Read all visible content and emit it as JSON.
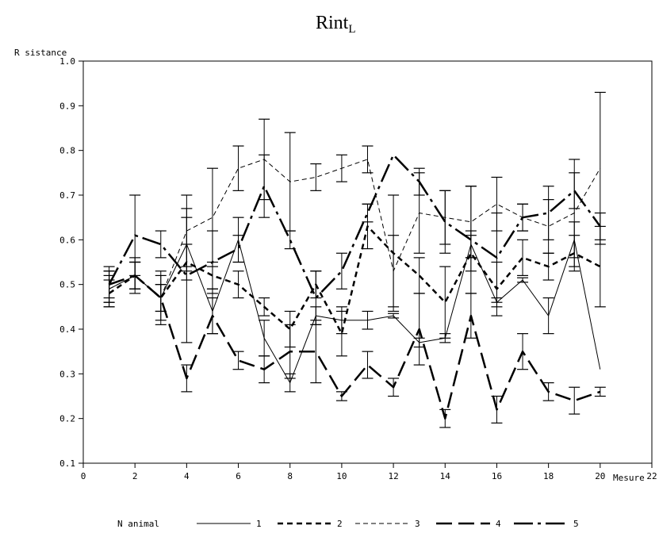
{
  "chart_data": {
    "type": "line",
    "title": "Rint",
    "title_subscript": "L",
    "ylabel": "R sistance",
    "xlabel": "Mesure",
    "xlim": [
      0,
      22
    ],
    "ylim": [
      0.1,
      1.0
    ],
    "x_ticks": [
      0,
      2,
      4,
      6,
      8,
      10,
      12,
      14,
      16,
      18,
      20,
      22
    ],
    "y_ticks": [
      "0.1",
      "0.2",
      "0.3",
      "0.4",
      "0.5",
      "0.6",
      "0.7",
      "0.8",
      "0.9",
      "1.0"
    ],
    "legend": {
      "title": "N animal",
      "position": "bottom"
    },
    "series": [
      {
        "name": "1",
        "style": "solid-thin",
        "x": [
          1,
          2,
          3,
          4,
          5,
          6,
          7,
          8,
          9,
          10,
          11,
          12,
          13,
          14,
          15,
          16,
          17,
          18,
          19,
          20
        ],
        "y": [
          0.49,
          0.52,
          0.47,
          0.59,
          0.44,
          0.6,
          0.38,
          0.28,
          0.43,
          0.42,
          0.42,
          0.43,
          0.37,
          0.38,
          0.59,
          0.46,
          0.51,
          0.43,
          0.6,
          0.31
        ],
        "err": [
          0.04,
          0.04,
          0.05,
          0.06,
          0.05,
          0.05,
          0.04,
          0.02,
          0.02,
          0.03,
          0.02,
          0.005,
          0.01,
          0.01,
          0.03,
          0.01,
          0.005,
          0.04,
          0.04,
          0.0
        ]
      },
      {
        "name": "2",
        "style": "short-dash",
        "x": [
          1,
          2,
          3,
          4,
          5,
          6,
          7,
          8,
          9,
          10,
          11,
          12,
          13,
          14,
          15,
          16,
          17,
          18,
          19,
          20
        ],
        "y": [
          0.48,
          0.52,
          0.47,
          0.55,
          0.52,
          0.5,
          0.45,
          0.4,
          0.5,
          0.39,
          0.63,
          0.57,
          0.52,
          0.46,
          0.57,
          0.49,
          0.56,
          0.54,
          0.57,
          0.54
        ],
        "err": [
          0.03,
          0.03,
          0.03,
          0.04,
          0.03,
          0.03,
          0.02,
          0.04,
          0.03,
          0.05,
          0.05,
          0.13,
          0.04,
          0.08,
          0.04,
          0.06,
          0.04,
          0.03,
          0.04,
          0.09
        ]
      },
      {
        "name": "3",
        "style": "dash-thin",
        "x": [
          1,
          2,
          3,
          4,
          5,
          6,
          7,
          8,
          9,
          10,
          11,
          12,
          13,
          14,
          15,
          16,
          17,
          18,
          19,
          20
        ],
        "y": [
          0.49,
          0.52,
          0.47,
          0.62,
          0.65,
          0.76,
          0.78,
          0.73,
          0.74,
          0.76,
          0.78,
          0.53,
          0.66,
          0.65,
          0.64,
          0.68,
          0.65,
          0.63,
          0.66,
          0.76
        ],
        "err": [
          0.03,
          0.03,
          0.03,
          0.08,
          0.11,
          0.05,
          0.09,
          0.11,
          0.03,
          0.03,
          0.03,
          0.08,
          0.09,
          0.06,
          0.08,
          0.06,
          0.03,
          0.06,
          0.12,
          0.17
        ]
      },
      {
        "name": "4",
        "style": "long-dash-thick",
        "x": [
          1,
          2,
          3,
          4,
          5,
          6,
          7,
          8,
          9,
          10,
          11,
          12,
          13,
          14,
          15,
          16,
          17,
          18,
          19,
          20
        ],
        "y": [
          0.5,
          0.52,
          0.47,
          0.29,
          0.43,
          0.33,
          0.31,
          0.35,
          0.35,
          0.25,
          0.32,
          0.27,
          0.4,
          0.2,
          0.43,
          0.22,
          0.35,
          0.26,
          0.24,
          0.26
        ],
        "err": [
          0.03,
          0.03,
          0.06,
          0.03,
          0.04,
          0.02,
          0.03,
          0.06,
          0.07,
          0.01,
          0.03,
          0.02,
          0.08,
          0.02,
          0.05,
          0.03,
          0.04,
          0.02,
          0.03,
          0.01
        ]
      },
      {
        "name": "5",
        "style": "dash-dot-thick",
        "x": [
          1,
          2,
          3,
          4,
          5,
          6,
          7,
          8,
          9,
          10,
          11,
          12,
          13,
          14,
          15,
          16,
          17,
          18,
          19,
          20
        ],
        "y": [
          0.5,
          0.61,
          0.59,
          0.52,
          0.55,
          0.58,
          0.72,
          0.6,
          0.47,
          0.53,
          0.66,
          0.79,
          0.73,
          0.64,
          0.6,
          0.56,
          0.65,
          0.66,
          0.71,
          0.63
        ],
        "err": [
          0.04,
          0.09,
          0.03,
          0.15,
          0.07,
          0.03,
          0.07,
          0.02,
          0.06,
          0.04,
          0.02,
          0.0,
          0.03,
          0.07,
          0.12,
          0.1,
          0.03,
          0.06,
          0.04,
          0.03
        ]
      }
    ]
  }
}
